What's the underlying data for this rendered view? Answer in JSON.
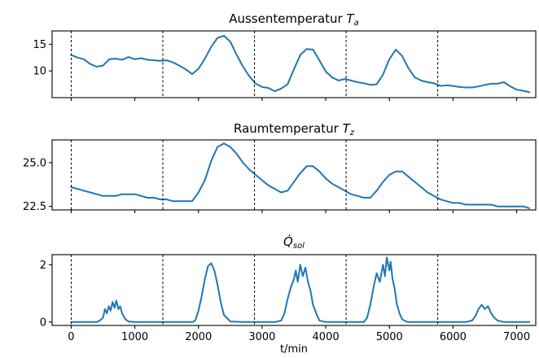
{
  "chart_data": [
    {
      "type": "line",
      "title": "Aussentemperatur T_a",
      "title_main": "Aussentemperatur ",
      "title_symbol": "T",
      "title_sub": "a",
      "xlim": [
        -300,
        7300
      ],
      "ylim": [
        5,
        17.5
      ],
      "yticks": [
        10,
        15
      ],
      "ytick_labels": [
        "10",
        "15"
      ],
      "xticks": [
        0,
        1000,
        2000,
        3000,
        4000,
        5000,
        6000,
        7000
      ],
      "xtick_labels_visible": false,
      "vlines": [
        0,
        1440,
        2880,
        4320,
        5760
      ],
      "color": "#1f77b4",
      "x": [
        0,
        100,
        200,
        300,
        400,
        500,
        600,
        700,
        800,
        900,
        1000,
        1100,
        1200,
        1300,
        1400,
        1500,
        1600,
        1700,
        1800,
        1900,
        2000,
        2100,
        2200,
        2300,
        2400,
        2500,
        2600,
        2700,
        2800,
        2900,
        3000,
        3100,
        3200,
        3300,
        3400,
        3500,
        3600,
        3700,
        3800,
        3900,
        4000,
        4100,
        4200,
        4300,
        4400,
        4500,
        4600,
        4700,
        4800,
        4900,
        5000,
        5100,
        5200,
        5300,
        5400,
        5500,
        5600,
        5700,
        5800,
        5900,
        6000,
        6100,
        6200,
        6300,
        6400,
        6500,
        6600,
        6700,
        6800,
        6900,
        7000,
        7100,
        7200
      ],
      "y": [
        13.0,
        12.5,
        12.2,
        11.3,
        10.8,
        11.0,
        12.2,
        12.3,
        12.1,
        12.6,
        12.2,
        12.4,
        12.1,
        12.0,
        11.9,
        12.0,
        11.6,
        11.0,
        10.3,
        9.4,
        10.4,
        12.3,
        14.5,
        16.2,
        16.6,
        15.5,
        13.0,
        10.8,
        9.0,
        7.6,
        7.0,
        6.8,
        6.2,
        6.7,
        7.5,
        10.3,
        13.0,
        14.1,
        14.0,
        12.0,
        9.9,
        8.8,
        8.2,
        8.5,
        8.2,
        7.9,
        7.7,
        7.4,
        7.5,
        9.3,
        12.2,
        14.0,
        12.8,
        10.5,
        8.8,
        8.2,
        7.9,
        7.7,
        7.2,
        7.3,
        7.2,
        7.0,
        6.9,
        6.9,
        7.1,
        7.4,
        7.6,
        7.6,
        7.9,
        7.1,
        6.5,
        6.3,
        6.0
      ]
    },
    {
      "type": "line",
      "title": "Raumtemperatur T_z",
      "title_main": "Raumtemperatur ",
      "title_symbol": "T",
      "title_sub": "z",
      "xlim": [
        -300,
        7300
      ],
      "ylim": [
        22.3,
        26.3
      ],
      "yticks": [
        22.5,
        25.0
      ],
      "ytick_labels": [
        "22.5",
        "25.0"
      ],
      "xticks": [
        0,
        1000,
        2000,
        3000,
        4000,
        5000,
        6000,
        7000
      ],
      "xtick_labels_visible": false,
      "vlines": [
        0,
        1440,
        2880,
        4320,
        5760
      ],
      "color": "#1f77b4",
      "x": [
        0,
        100,
        200,
        300,
        400,
        500,
        600,
        700,
        800,
        900,
        1000,
        1100,
        1200,
        1300,
        1400,
        1500,
        1600,
        1700,
        1800,
        1900,
        2000,
        2100,
        2200,
        2300,
        2400,
        2500,
        2600,
        2700,
        2800,
        2900,
        3000,
        3100,
        3200,
        3300,
        3400,
        3500,
        3600,
        3700,
        3800,
        3900,
        4000,
        4100,
        4200,
        4300,
        4400,
        4500,
        4600,
        4700,
        4800,
        4900,
        5000,
        5100,
        5200,
        5300,
        5400,
        5500,
        5600,
        5700,
        5800,
        5900,
        6000,
        6100,
        6200,
        6300,
        6400,
        6500,
        6600,
        6700,
        6800,
        6900,
        7000,
        7100,
        7200
      ],
      "y": [
        23.6,
        23.5,
        23.4,
        23.3,
        23.2,
        23.1,
        23.1,
        23.1,
        23.2,
        23.2,
        23.2,
        23.1,
        23.0,
        23.0,
        22.9,
        22.9,
        22.8,
        22.8,
        22.8,
        22.8,
        23.3,
        24.0,
        25.1,
        25.9,
        26.1,
        25.9,
        25.5,
        25.0,
        24.6,
        24.3,
        24.0,
        23.7,
        23.5,
        23.3,
        23.4,
        23.9,
        24.4,
        24.8,
        24.8,
        24.5,
        24.1,
        23.8,
        23.6,
        23.4,
        23.2,
        23.1,
        23.0,
        23.0,
        23.4,
        23.9,
        24.3,
        24.5,
        24.5,
        24.2,
        23.9,
        23.6,
        23.3,
        23.1,
        22.9,
        22.8,
        22.7,
        22.7,
        22.6,
        22.6,
        22.6,
        22.6,
        22.6,
        22.5,
        22.5,
        22.5,
        22.5,
        22.5,
        22.4
      ]
    },
    {
      "type": "line",
      "title": "Q̇_sol",
      "title_main": "",
      "title_symbol": "Q̇",
      "title_sub": "sol",
      "xlim": [
        -300,
        7300
      ],
      "ylim": [
        -0.12,
        2.35
      ],
      "yticks": [
        0,
        2
      ],
      "ytick_labels": [
        "0",
        "2"
      ],
      "xticks": [
        0,
        1000,
        2000,
        3000,
        4000,
        5000,
        6000,
        7000
      ],
      "xtick_labels": [
        "0",
        "1000",
        "2000",
        "3000",
        "4000",
        "5000",
        "6000",
        "7000"
      ],
      "xtick_labels_visible": true,
      "xlabel": "t/min",
      "vlines": [
        0,
        1440,
        2880,
        4320,
        5760
      ],
      "color": "#1f77b4",
      "x": [
        0,
        100,
        200,
        300,
        400,
        450,
        500,
        530,
        560,
        590,
        620,
        650,
        680,
        710,
        740,
        770,
        800,
        850,
        900,
        1000,
        1200,
        1400,
        1600,
        1800,
        1900,
        1950,
        2000,
        2050,
        2100,
        2150,
        2200,
        2250,
        2300,
        2350,
        2400,
        2500,
        2700,
        2900,
        3100,
        3200,
        3300,
        3350,
        3400,
        3450,
        3500,
        3530,
        3560,
        3600,
        3640,
        3680,
        3720,
        3760,
        3800,
        3850,
        3900,
        4000,
        4200,
        4400,
        4600,
        4650,
        4700,
        4750,
        4800,
        4850,
        4900,
        4930,
        4960,
        5000,
        5020,
        5050,
        5080,
        5120,
        5160,
        5200,
        5250,
        5300,
        5400,
        5600,
        5800,
        6000,
        6200,
        6300,
        6350,
        6400,
        6450,
        6500,
        6550,
        6600,
        6650,
        6700,
        6800,
        7000,
        7200
      ],
      "y": [
        0,
        0,
        0,
        0,
        0,
        0.05,
        0.15,
        0.45,
        0.3,
        0.55,
        0.4,
        0.7,
        0.5,
        0.75,
        0.45,
        0.55,
        0.3,
        0.1,
        0.02,
        0,
        0,
        0,
        0,
        0,
        0,
        0.05,
        0.4,
        0.9,
        1.5,
        1.95,
        2.05,
        1.8,
        1.3,
        0.7,
        0.25,
        0.02,
        0,
        0,
        0,
        0,
        0.05,
        0.3,
        0.8,
        1.2,
        1.5,
        1.8,
        1.4,
        2.0,
        1.6,
        1.9,
        1.4,
        1.1,
        0.6,
        0.3,
        0.05,
        0,
        0,
        0,
        0,
        0.15,
        0.6,
        1.2,
        1.7,
        1.4,
        2.0,
        1.6,
        2.25,
        1.8,
        2.1,
        1.5,
        1.2,
        0.6,
        0.3,
        0.1,
        0.03,
        0,
        0,
        0,
        0,
        0,
        0,
        0.05,
        0.2,
        0.45,
        0.6,
        0.45,
        0.55,
        0.3,
        0.15,
        0.05,
        0,
        0,
        0
      ]
    }
  ]
}
